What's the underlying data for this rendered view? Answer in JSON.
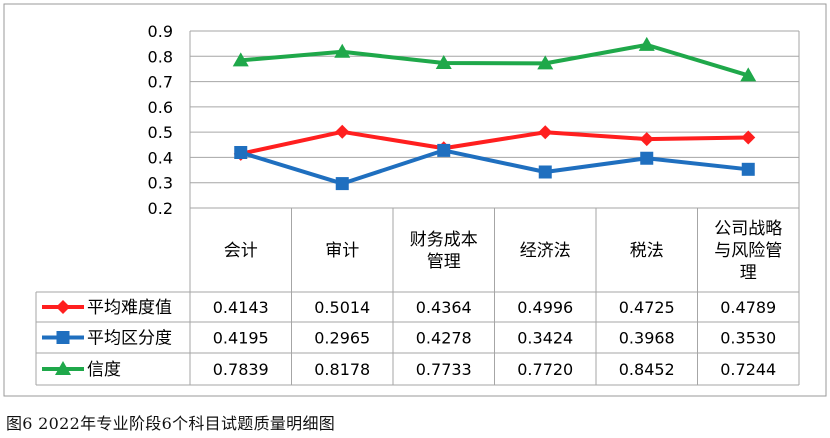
{
  "caption": "图6  2022年专业阶段6个科目试题质量明细图",
  "chart_data": {
    "type": "line",
    "categories": [
      [
        "会计"
      ],
      [
        "审计"
      ],
      [
        "财务成本",
        "管理"
      ],
      [
        "经济法"
      ],
      [
        "税法"
      ],
      [
        "公司战略",
        "与风险管",
        "理"
      ]
    ],
    "ylim": [
      0.2,
      0.9
    ],
    "yticks": [
      "0.9",
      "0.8",
      "0.7",
      "0.6",
      "0.5",
      "0.4",
      "0.3",
      "0.2"
    ],
    "grid": true,
    "series": [
      {
        "name": "平均难度值",
        "color": "#ff1f1f",
        "marker": "diamond",
        "values": [
          0.4143,
          0.5014,
          0.4364,
          0.4996,
          0.4725,
          0.4789
        ],
        "labels": [
          "0.4143",
          "0.5014",
          "0.4364",
          "0.4996",
          "0.4725",
          "0.4789"
        ]
      },
      {
        "name": "平均区分度",
        "color": "#1f6fbf",
        "marker": "square",
        "values": [
          0.4195,
          0.2965,
          0.4278,
          0.3424,
          0.3968,
          0.353
        ],
        "labels": [
          "0.4195",
          "0.2965",
          "0.4278",
          "0.3424",
          "0.3968",
          "0.3530"
        ]
      },
      {
        "name": "信度",
        "color": "#1fa84a",
        "marker": "triangle",
        "values": [
          0.7839,
          0.8178,
          0.7733,
          0.772,
          0.8452,
          0.7244
        ],
        "labels": [
          "0.7839",
          "0.8178",
          "0.7733",
          "0.7720",
          "0.8452",
          "0.7244"
        ]
      }
    ]
  }
}
